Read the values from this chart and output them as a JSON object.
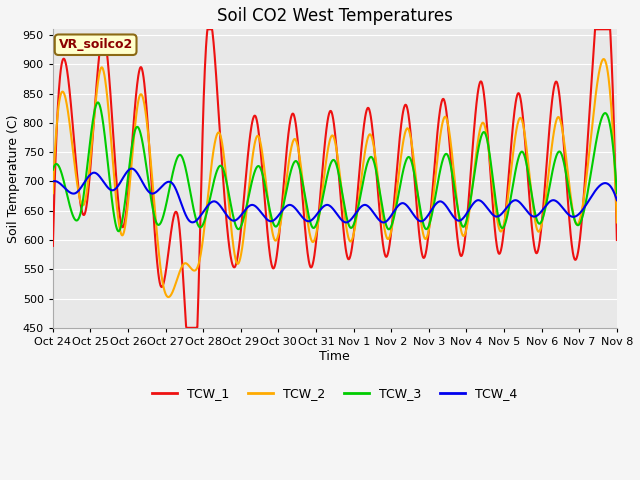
{
  "title": "Soil CO2 West Temperatures",
  "ylabel": "Soil Temperature (C)",
  "xlabel": "Time",
  "annotation": "VR_soilco2",
  "ylim": [
    450,
    960
  ],
  "yticks": [
    450,
    500,
    550,
    600,
    650,
    700,
    750,
    800,
    850,
    900,
    950
  ],
  "xtick_labels": [
    "Oct 24",
    "Oct 25",
    "Oct 26",
    "Oct 27",
    "Oct 28",
    "Oct 29",
    "Oct 30",
    "Oct 31",
    "Nov 1",
    "Nov 2",
    "Nov 3",
    "Nov 4",
    "Nov 5",
    "Nov 6",
    "Nov 7",
    "Nov 8"
  ],
  "series_colors": {
    "TCW_1": "#ee1111",
    "TCW_2": "#ffaa00",
    "TCW_3": "#00cc00",
    "TCW_4": "#0000ee"
  },
  "background_color": "#e8e8e8",
  "plot_bg_color": "#dcdcdc",
  "grid_color": "#ffffff",
  "legend_labels": [
    "TCW_1",
    "TCW_2",
    "TCW_3",
    "TCW_4"
  ],
  "legend_colors": [
    "#ee1111",
    "#ffaa00",
    "#00cc00",
    "#0000ee"
  ],
  "linewidth": 1.5,
  "title_fontsize": 12,
  "label_fontsize": 9,
  "tick_fontsize": 8
}
